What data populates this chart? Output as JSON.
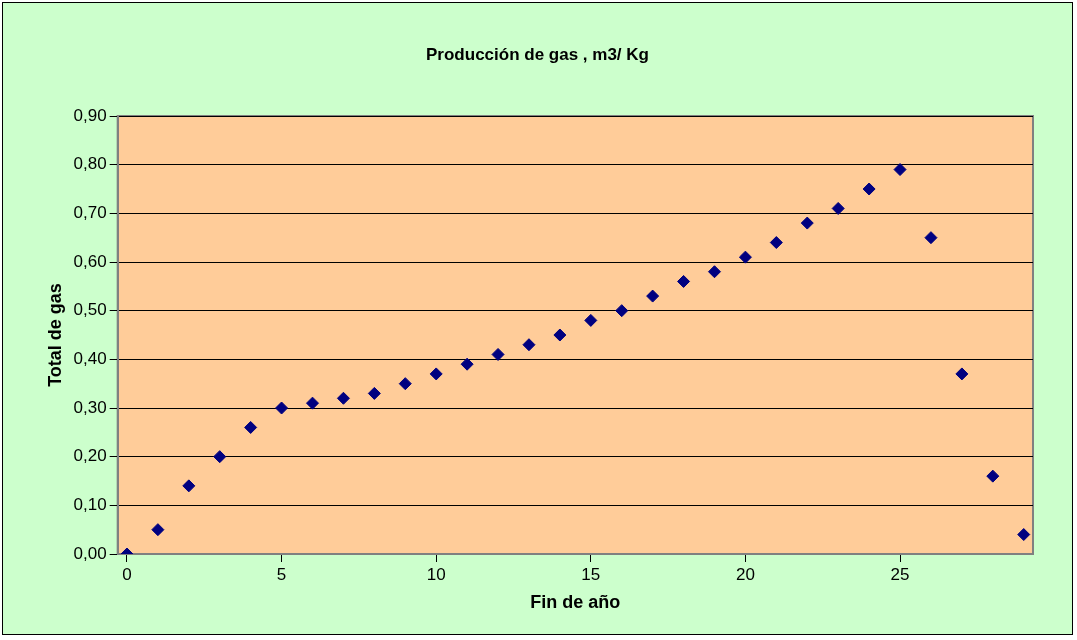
{
  "chart_data": {
    "type": "scatter",
    "title": "Producción de gas , m3/ Kg",
    "xlabel": "Fin de año",
    "ylabel": "Total de gas",
    "x": [
      0,
      1,
      2,
      3,
      4,
      5,
      6,
      7,
      8,
      9,
      10,
      11,
      12,
      13,
      14,
      15,
      16,
      17,
      18,
      19,
      20,
      21,
      22,
      23,
      24,
      25,
      26,
      27,
      28,
      29
    ],
    "values": [
      0,
      0.05,
      0.14,
      0.2,
      0.26,
      0.3,
      0.31,
      0.32,
      0.33,
      0.35,
      0.37,
      0.39,
      0.41,
      0.43,
      0.45,
      0.48,
      0.5,
      0.53,
      0.56,
      0.58,
      0.61,
      0.64,
      0.68,
      0.71,
      0.75,
      0.79,
      0.65,
      0.37,
      0.16,
      0.04
    ],
    "color": "#000080",
    "marker": "diamond",
    "xlim": [
      -0.3,
      29.3
    ],
    "xticks": [
      0,
      5,
      10,
      15,
      20,
      25
    ],
    "ylim": [
      0,
      0.9
    ],
    "yticks": [
      {
        "value": 0,
        "label": "0,00"
      },
      {
        "value": 0.1,
        "label": "0,10"
      },
      {
        "value": 0.2,
        "label": "0,20"
      },
      {
        "value": 0.3,
        "label": "0,30"
      },
      {
        "value": 0.4,
        "label": "0,40"
      },
      {
        "value": 0.5,
        "label": "0,50"
      },
      {
        "value": 0.6,
        "label": "0,60"
      },
      {
        "value": 0.7,
        "label": "0,70"
      },
      {
        "value": 0.8,
        "label": "0,80"
      },
      {
        "value": 0.9,
        "label": "0,90"
      }
    ],
    "grid": "y",
    "legend": false
  }
}
